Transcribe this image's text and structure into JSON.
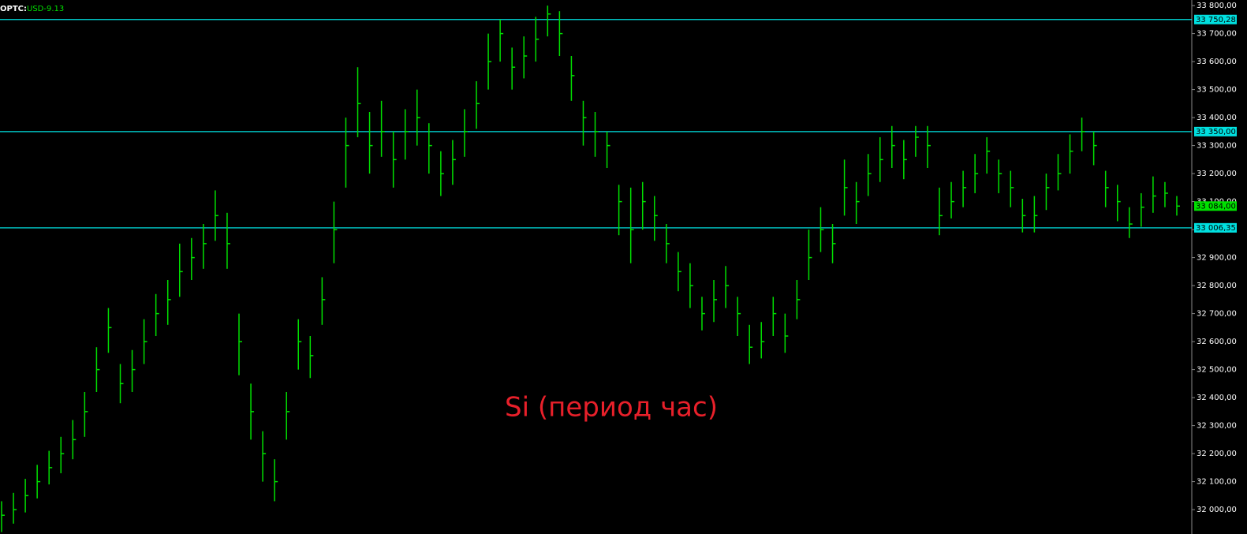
{
  "chart_data": {
    "type": "ohlc",
    "title": "OPTC:",
    "subtitle": "USD-9.13",
    "annotation": "Si (период час)",
    "ylim": [
      31913,
      33820
    ],
    "yticks": [
      {
        "value": 32000,
        "label": "32 000,00"
      },
      {
        "value": 32100,
        "label": "32 100,00"
      },
      {
        "value": 32200,
        "label": "32 200,00"
      },
      {
        "value": 32300,
        "label": "32 300,00"
      },
      {
        "value": 32400,
        "label": "32 400,00"
      },
      {
        "value": 32500,
        "label": "32 500,00"
      },
      {
        "value": 32600,
        "label": "32 600,00"
      },
      {
        "value": 32700,
        "label": "32 700,00"
      },
      {
        "value": 32800,
        "label": "32 800,00"
      },
      {
        "value": 32900,
        "label": "32 900,00"
      },
      {
        "value": 33000,
        "label": "33 000,00"
      },
      {
        "value": 33100,
        "label": "33 100,00"
      },
      {
        "value": 33200,
        "label": "33 200,00"
      },
      {
        "value": 33300,
        "label": "33 300,00"
      },
      {
        "value": 33400,
        "label": "33 400,00"
      },
      {
        "value": 33500,
        "label": "33 500,00"
      },
      {
        "value": 33600,
        "label": "33 600,00"
      },
      {
        "value": 33700,
        "label": "33 700,00"
      },
      {
        "value": 33800,
        "label": "33 800,00"
      }
    ],
    "color": "#00e000",
    "levels": [
      {
        "value": 33750.28,
        "label": "33 750,28",
        "color": "#00e0e0"
      },
      {
        "value": 33350,
        "label": "33 350,00",
        "color": "#00e0e0"
      },
      {
        "value": 33006.35,
        "label": "33 006,35",
        "color": "#00e0e0"
      }
    ],
    "last_price_label": "33 084,00",
    "high": [
      32030,
      32060,
      32110,
      32160,
      32210,
      32260,
      32320,
      32420,
      32580,
      32720,
      32520,
      32570,
      32680,
      32770,
      32820,
      32950,
      32970,
      33020,
      33140,
      33060,
      32700,
      32450,
      32280,
      32180,
      32420,
      32680,
      32620,
      32830,
      33100,
      33400,
      33580,
      33420,
      33460,
      33350,
      33430,
      33500,
      33380,
      33280,
      33320,
      33430,
      33530,
      33700,
      33750,
      33650,
      33690,
      33760,
      33800,
      33780,
      33620,
      33460,
      33420,
      33350,
      33160,
      33150,
      33170,
      33120,
      33020,
      32920,
      32880,
      32760,
      32820,
      32870,
      32760,
      32660,
      32670,
      32760,
      32700,
      32820,
      33000,
      33080,
      33020,
      33250,
      33170,
      33270,
      33330,
      33370,
      33320,
      33370,
      33370,
      33150,
      33170,
      33210,
      33270,
      33330,
      33250,
      33210,
      33110,
      33120,
      33200,
      33270,
      33340,
      33400,
      33350,
      33210,
      33160,
      33080,
      33130,
      33190,
      33170,
      33120
    ],
    "low": [
      31920,
      31950,
      31990,
      32040,
      32090,
      32130,
      32180,
      32260,
      32420,
      32560,
      32380,
      32420,
      32520,
      32620,
      32660,
      32760,
      32820,
      32860,
      32960,
      32860,
      32480,
      32250,
      32100,
      32030,
      32250,
      32500,
      32470,
      32660,
      32880,
      33150,
      33330,
      33200,
      33260,
      33150,
      33250,
      33300,
      33200,
      33120,
      33160,
      33260,
      33360,
      33500,
      33600,
      33500,
      33540,
      33600,
      33690,
      33620,
      33460,
      33300,
      33260,
      33220,
      32980,
      32880,
      33000,
      32960,
      32880,
      32780,
      32720,
      32640,
      32670,
      32720,
      32620,
      32520,
      32540,
      32620,
      32560,
      32680,
      32820,
      32920,
      32880,
      33050,
      33020,
      33120,
      33170,
      33220,
      33180,
      33260,
      33220,
      32980,
      33040,
      33080,
      33130,
      33200,
      33130,
      33080,
      32990,
      32990,
      33070,
      33140,
      33200,
      33280,
      33230,
      33080,
      33030,
      32970,
      33010,
      33060,
      33080,
      33050
    ],
    "close": [
      31980,
      32000,
      32050,
      32100,
      32150,
      32200,
      32250,
      32350,
      32500,
      32650,
      32450,
      32500,
      32600,
      32700,
      32750,
      32850,
      32900,
      32950,
      33050,
      32950,
      32600,
      32350,
      32200,
      32100,
      32350,
      32600,
      32550,
      32750,
      33000,
      33300,
      33450,
      33300,
      33350,
      33250,
      33350,
      33400,
      33300,
      33200,
      33250,
      33350,
      33450,
      33600,
      33700,
      33580,
      33620,
      33680,
      33770,
      33700,
      33550,
      33400,
      33350,
      33300,
      33100,
      33000,
      33100,
      33050,
      32950,
      32850,
      32800,
      32700,
      32750,
      32800,
      32700,
      32580,
      32600,
      32700,
      32620,
      32750,
      32900,
      33000,
      32950,
      33150,
      33100,
      33200,
      33250,
      33300,
      33250,
      33330,
      33300,
      33050,
      33100,
      33150,
      33200,
      33280,
      33200,
      33150,
      33050,
      33050,
      33150,
      33200,
      33280,
      33350,
      33300,
      33150,
      33100,
      33020,
      33080,
      33120,
      33130,
      33084
    ]
  }
}
